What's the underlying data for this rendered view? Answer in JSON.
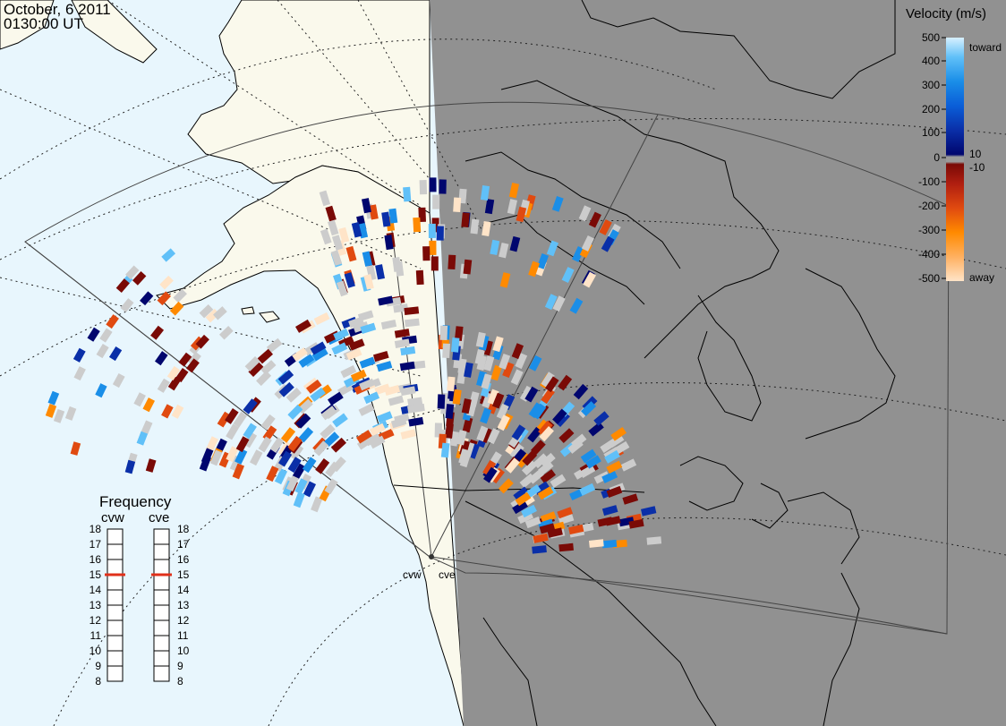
{
  "header": {
    "date": "October, 6 2011",
    "time": "0130:00 UT"
  },
  "velocity_legend": {
    "title": "Velocity (m/s)",
    "ticks": [
      "500",
      "400",
      "300",
      "200",
      "100",
      "10",
      "0",
      "-10",
      "-100",
      "-200",
      "-300",
      "-400",
      "-500"
    ],
    "toward_label": "toward",
    "away_label": "away",
    "gradient": [
      "#ffe4c8",
      "#ffb060",
      "#ff8a00",
      "#e04a10",
      "#b01e10",
      "#7a0a06",
      "#9a9a9a",
      "#00066e",
      "#0a2fa8",
      "#0a5ed8",
      "#1a8ee8",
      "#60c0f8",
      "#d8f0ff"
    ],
    "scale_values": [
      500,
      400,
      300,
      200,
      100,
      10,
      0,
      -10,
      -100,
      -200,
      -300,
      -400,
      -500
    ]
  },
  "frequency_legend": {
    "title": "Frequency",
    "columns": [
      {
        "name": "cvw",
        "selected": 15
      },
      {
        "name": "cve",
        "selected": 15
      }
    ],
    "ticks": [
      "18",
      "17",
      "16",
      "15",
      "14",
      "13",
      "12",
      "11",
      "10",
      "9",
      "8"
    ],
    "marker_color": "#e0301a"
  },
  "radars": {
    "cvw_label": "cvw",
    "cve_label": "cve"
  },
  "colors": {
    "ocean": "#e8f6fd",
    "land_day": "#faf9ec",
    "night": "#919191",
    "ground_scatter": "#cccccc"
  }
}
